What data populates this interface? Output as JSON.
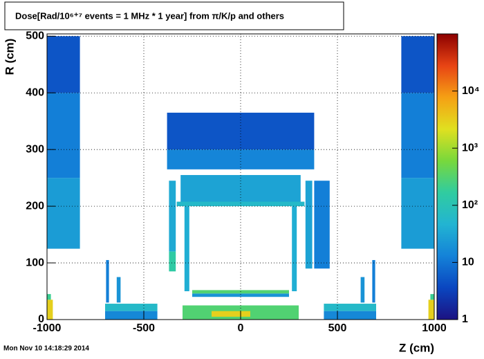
{
  "chart_data": {
    "type": "heatmap",
    "title": "Dose[Rad/10⁶⁺⁷ events = 1 MHz * 1 year] from π/K/p and others",
    "x_label": "Z (cm)",
    "y_label": "R (cm)",
    "timestamp": "Mon Nov 10 14:18:29 2014",
    "xlim": [
      -1000,
      1000
    ],
    "ylim": [
      0,
      504
    ],
    "xticks": [
      -1000,
      -500,
      0,
      500,
      1000
    ],
    "yticks": [
      0,
      100,
      200,
      300,
      400,
      500
    ],
    "grid": true,
    "zlim": [
      1,
      100000
    ],
    "zscale": "log",
    "zticks": [
      1,
      10,
      {
        "value": 100,
        "label": "10²"
      },
      {
        "value": 1000,
        "label": "10³"
      },
      {
        "value": 10000,
        "label": "10⁴"
      }
    ],
    "colormap": [
      "#1c1282",
      "#0a46c0",
      "#1482d8",
      "#22b4d2",
      "#30cca0",
      "#78d83c",
      "#e0e020",
      "#f5a014",
      "#e84414",
      "#8c0000"
    ],
    "cells": [
      {
        "x": [
          -1000,
          -830
        ],
        "y": [
          125,
          250
        ],
        "value": 25
      },
      {
        "x": [
          -1000,
          -830
        ],
        "y": [
          250,
          400
        ],
        "value": 12
      },
      {
        "x": [
          -1000,
          -830
        ],
        "y": [
          400,
          500
        ],
        "value": 5
      },
      {
        "x": [
          830,
          1000
        ],
        "y": [
          125,
          250
        ],
        "value": 25
      },
      {
        "x": [
          830,
          1000
        ],
        "y": [
          250,
          400
        ],
        "value": 12
      },
      {
        "x": [
          830,
          1000
        ],
        "y": [
          400,
          500
        ],
        "value": 5
      },
      {
        "x": [
          -380,
          380
        ],
        "y": [
          300,
          365
        ],
        "value": 5
      },
      {
        "x": [
          -380,
          380
        ],
        "y": [
          265,
          300
        ],
        "value": 14
      },
      {
        "x": [
          -310,
          310
        ],
        "y": [
          205,
          255
        ],
        "value": 30
      },
      {
        "x": [
          -330,
          330
        ],
        "y": [
          200,
          208
        ],
        "value": 60
      },
      {
        "x": [
          380,
          460
        ],
        "y": [
          90,
          245
        ],
        "value": 12
      },
      {
        "x": [
          -370,
          -335
        ],
        "y": [
          120,
          245
        ],
        "value": 35
      },
      {
        "x": [
          -370,
          -335
        ],
        "y": [
          85,
          120
        ],
        "value": 150
      },
      {
        "x": [
          335,
          370
        ],
        "y": [
          90,
          245
        ],
        "value": 30
      },
      {
        "x": [
          -290,
          -265
        ],
        "y": [
          50,
          200
        ],
        "value": 40
      },
      {
        "x": [
          265,
          290
        ],
        "y": [
          50,
          200
        ],
        "value": 40
      },
      {
        "x": [
          -250,
          250
        ],
        "y": [
          40,
          46
        ],
        "value": 20
      },
      {
        "x": [
          -250,
          250
        ],
        "y": [
          46,
          52
        ],
        "value": 300
      },
      {
        "x": [
          -300,
          300
        ],
        "y": [
          0,
          25
        ],
        "value": 300
      },
      {
        "x": [
          -150,
          50
        ],
        "y": [
          5,
          15
        ],
        "value": 3000
      },
      {
        "x": [
          -700,
          -430
        ],
        "y": [
          15,
          28
        ],
        "value": 60
      },
      {
        "x": [
          430,
          700
        ],
        "y": [
          15,
          28
        ],
        "value": 60
      },
      {
        "x": [
          -700,
          -430
        ],
        "y": [
          0,
          15
        ],
        "value": 15
      },
      {
        "x": [
          430,
          700
        ],
        "y": [
          0,
          15
        ],
        "value": 15
      },
      {
        "x": [
          -695,
          -680
        ],
        "y": [
          30,
          105
        ],
        "value": 12
      },
      {
        "x": [
          680,
          695
        ],
        "y": [
          30,
          105
        ],
        "value": 12
      },
      {
        "x": [
          -640,
          -620
        ],
        "y": [
          30,
          75
        ],
        "value": 20
      },
      {
        "x": [
          620,
          640
        ],
        "y": [
          30,
          75
        ],
        "value": 20
      },
      {
        "x": [
          -1000,
          -970
        ],
        "y": [
          0,
          35
        ],
        "value": 3000
      },
      {
        "x": [
          970,
          1000
        ],
        "y": [
          0,
          35
        ],
        "value": 3000
      },
      {
        "x": [
          -1000,
          -980
        ],
        "y": [
          35,
          45
        ],
        "value": 200
      },
      {
        "x": [
          980,
          1000
        ],
        "y": [
          35,
          45
        ],
        "value": 200
      }
    ]
  }
}
